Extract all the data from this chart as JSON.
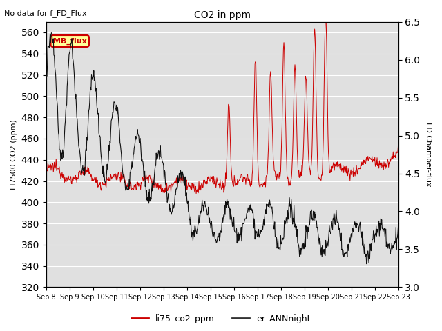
{
  "title": "CO2 in ppm",
  "top_left_text": "No data for f_FD_Flux",
  "ylabel_left": "LI7500 CO2 (ppm)",
  "ylabel_right": "FD Chamber-flux",
  "ylim_left": [
    320,
    570
  ],
  "ylim_right": [
    3.0,
    6.5
  ],
  "yticks_left": [
    320,
    340,
    360,
    380,
    400,
    420,
    440,
    460,
    480,
    500,
    520,
    540,
    560
  ],
  "yticks_right": [
    3.0,
    3.5,
    4.0,
    4.5,
    5.0,
    5.5,
    6.0,
    6.5
  ],
  "xlabel_ticks": [
    "Sep 8",
    "Sep 9",
    "Sep 10",
    "Sep 11",
    "Sep 12",
    "Sep 13",
    "Sep 14",
    "Sep 15",
    "Sep 16",
    "Sep 17",
    "Sep 18",
    "Sep 19",
    "Sep 20",
    "Sep 21",
    "Sep 22",
    "Sep 23"
  ],
  "legend_entries": [
    "li75_co2_ppm",
    "er_ANNnight"
  ],
  "legend_colors": [
    "#cc0000",
    "#333333"
  ],
  "line_color_red": "#cc0000",
  "line_color_black": "#111111",
  "mb_flux_box_color": "#ffff99",
  "mb_flux_border_color": "#cc0000",
  "mb_flux_text_color": "#cc0000",
  "background_color": "#e0e0e0",
  "grid_color": "#ffffff",
  "figsize": [
    6.4,
    4.8
  ],
  "dpi": 100
}
